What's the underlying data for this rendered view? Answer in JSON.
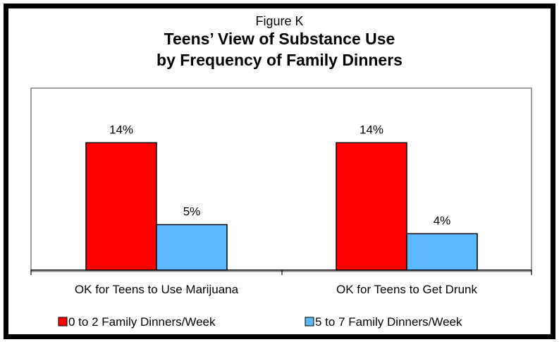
{
  "header": {
    "figure_label": "Figure K",
    "title_line1": "Teens’ View of Substance Use",
    "title_line2": "by Frequency of Family Dinners"
  },
  "chart_data": {
    "type": "bar",
    "categories": [
      "OK for Teens to Use Marijuana",
      "OK for Teens to Get Drunk"
    ],
    "series": [
      {
        "name": "0 to 2 Family Dinners/Week",
        "values": [
          14,
          14
        ],
        "labels": [
          "14%",
          "14%"
        ],
        "color": "#ff0000"
      },
      {
        "name": "5 to 7 Family Dinners/Week",
        "values": [
          5,
          4
        ],
        "labels": [
          "5%",
          "4%"
        ],
        "color": "#5cb8ff"
      }
    ],
    "ylim": [
      0,
      20
    ],
    "grid": false,
    "legend": "bottom"
  }
}
